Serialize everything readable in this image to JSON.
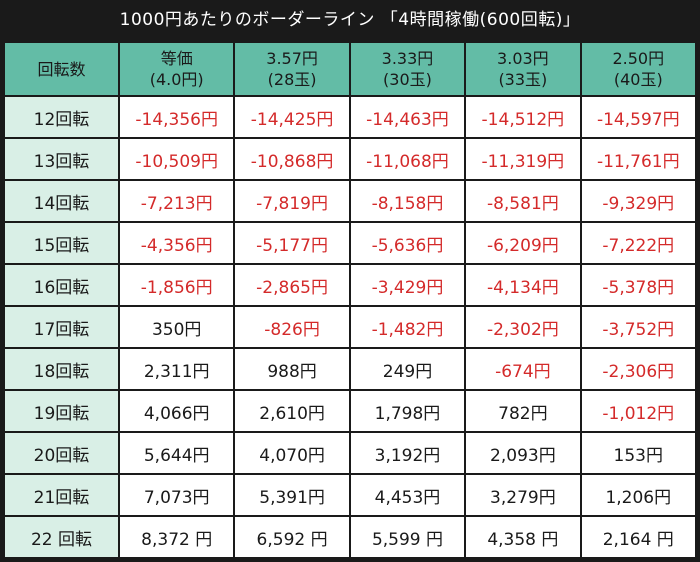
{
  "title": "1000円あたりのボーダーライン 「4時間稼働(600回転)」",
  "colors": {
    "header_bg": "#63bca6",
    "rowhead_bg": "#d9efe6",
    "negative": "#d42a2a",
    "frame": "#1a1a1a"
  },
  "header": {
    "corner": "回転数",
    "columns": [
      {
        "line1": "等価",
        "line2": "(4.0円)"
      },
      {
        "line1": "3.57円",
        "line2": "(28玉)"
      },
      {
        "line1": "3.33円",
        "line2": "(30玉)"
      },
      {
        "line1": "3.03円",
        "line2": "(33玉)"
      },
      {
        "line1": "2.50円",
        "line2": "(40玉)"
      }
    ]
  },
  "rows": [
    {
      "label": "12回転",
      "values": [
        "-14,356円",
        "-14,425円",
        "-14,463円",
        "-14,512円",
        "-14,597円"
      ],
      "neg": [
        true,
        true,
        true,
        true,
        true
      ]
    },
    {
      "label": "13回転",
      "values": [
        "-10,509円",
        "-10,868円",
        "-11,068円",
        "-11,319円",
        "-11,761円"
      ],
      "neg": [
        true,
        true,
        true,
        true,
        true
      ]
    },
    {
      "label": "14回転",
      "values": [
        "-7,213円",
        "-7,819円",
        "-8,158円",
        "-8,581円",
        "-9,329円"
      ],
      "neg": [
        true,
        true,
        true,
        true,
        true
      ]
    },
    {
      "label": "15回転",
      "values": [
        "-4,356円",
        "-5,177円",
        "-5,636円",
        "-6,209円",
        "-7,222円"
      ],
      "neg": [
        true,
        true,
        true,
        true,
        true
      ]
    },
    {
      "label": "16回転",
      "values": [
        "-1,856円",
        "-2,865円",
        "-3,429円",
        "-4,134円",
        "-5,378円"
      ],
      "neg": [
        true,
        true,
        true,
        true,
        true
      ]
    },
    {
      "label": "17回転",
      "values": [
        "350円",
        "-826円",
        "-1,482円",
        "-2,302円",
        "-3,752円"
      ],
      "neg": [
        false,
        true,
        true,
        true,
        true
      ]
    },
    {
      "label": "18回転",
      "values": [
        "2,311円",
        "988円",
        "249円",
        "-674円",
        "-2,306円"
      ],
      "neg": [
        false,
        false,
        false,
        true,
        true
      ]
    },
    {
      "label": "19回転",
      "values": [
        "4,066円",
        "2,610円",
        "1,798円",
        "782円",
        "-1,012円"
      ],
      "neg": [
        false,
        false,
        false,
        false,
        true
      ]
    },
    {
      "label": "20回転",
      "values": [
        "5,644円",
        "4,070円",
        "3,192円",
        "2,093円",
        "153円"
      ],
      "neg": [
        false,
        false,
        false,
        false,
        false
      ]
    },
    {
      "label": "21回転",
      "values": [
        "7,073円",
        "5,391円",
        "4,453円",
        "3,279円",
        "1,206円"
      ],
      "neg": [
        false,
        false,
        false,
        false,
        false
      ]
    },
    {
      "label": "22 回転",
      "values": [
        "8,372 円",
        "6,592 円",
        "5,599 円",
        "4,358 円",
        "2,164 円"
      ],
      "neg": [
        false,
        false,
        false,
        false,
        false
      ]
    }
  ]
}
